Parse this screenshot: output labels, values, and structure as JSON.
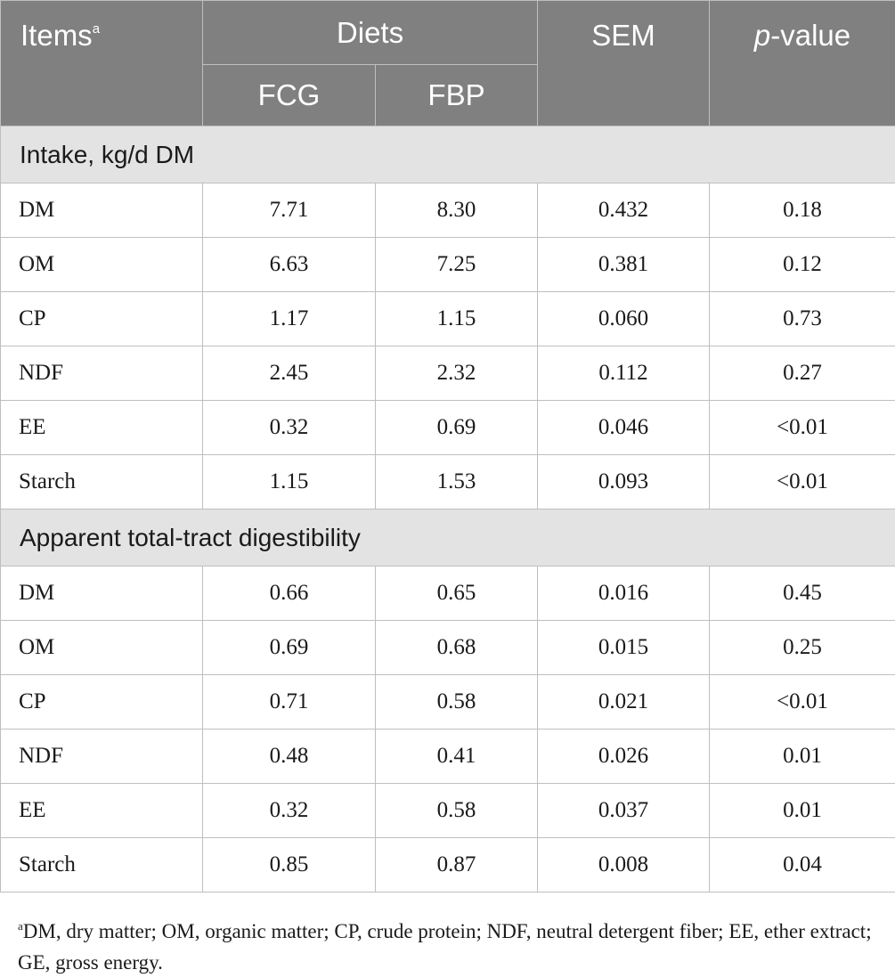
{
  "header": {
    "items_label": "Items",
    "items_sup": "a",
    "diets_label": "Diets",
    "sem_label": "SEM",
    "p_italic": "p",
    "p_suffix": "-value",
    "diet1": "FCG",
    "diet2": "FBP"
  },
  "sections": [
    {
      "title": "Intake, kg/d DM",
      "rows": [
        {
          "item": "DM",
          "fcg": "7.71",
          "fbp": "8.30",
          "sem": "0.432",
          "p": "0.18"
        },
        {
          "item": "OM",
          "fcg": "6.63",
          "fbp": "7.25",
          "sem": "0.381",
          "p": "0.12"
        },
        {
          "item": "CP",
          "fcg": "1.17",
          "fbp": "1.15",
          "sem": "0.060",
          "p": "0.73"
        },
        {
          "item": "NDF",
          "fcg": "2.45",
          "fbp": "2.32",
          "sem": "0.112",
          "p": "0.27"
        },
        {
          "item": "EE",
          "fcg": "0.32",
          "fbp": "0.69",
          "sem": "0.046",
          "p": "<0.01"
        },
        {
          "item": "Starch",
          "fcg": "1.15",
          "fbp": "1.53",
          "sem": "0.093",
          "p": "<0.01"
        }
      ]
    },
    {
      "title": "Apparent total-tract digestibility",
      "rows": [
        {
          "item": "DM",
          "fcg": "0.66",
          "fbp": "0.65",
          "sem": "0.016",
          "p": "0.45"
        },
        {
          "item": "OM",
          "fcg": "0.69",
          "fbp": "0.68",
          "sem": "0.015",
          "p": "0.25"
        },
        {
          "item": "CP",
          "fcg": "0.71",
          "fbp": "0.58",
          "sem": "0.021",
          "p": "<0.01"
        },
        {
          "item": "NDF",
          "fcg": "0.48",
          "fbp": "0.41",
          "sem": "0.026",
          "p": "0.01"
        },
        {
          "item": "EE",
          "fcg": "0.32",
          "fbp": "0.58",
          "sem": "0.037",
          "p": "0.01"
        },
        {
          "item": "Starch",
          "fcg": "0.85",
          "fbp": "0.87",
          "sem": "0.008",
          "p": "0.04"
        }
      ]
    }
  ],
  "footnote": {
    "sup": "a",
    "text": "DM, dry matter; OM, organic matter; CP, crude protein; NDF, neutral detergent fiber; EE, ether extract; GE, gross energy."
  }
}
